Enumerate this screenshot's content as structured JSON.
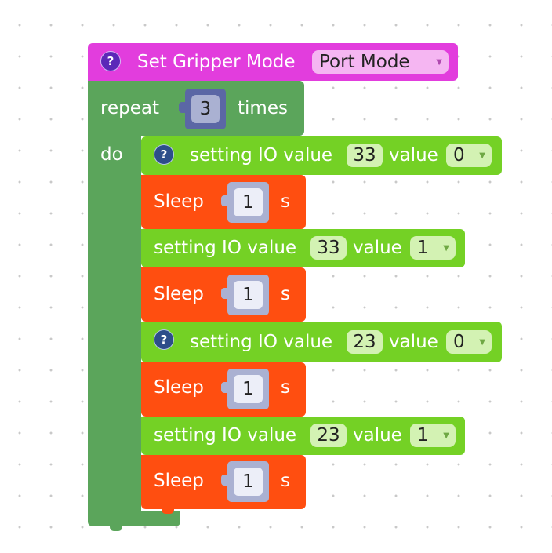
{
  "set_gripper": {
    "help_icon": "?",
    "label": "Set Gripper Mode",
    "mode_value": "Port Mode"
  },
  "repeat": {
    "label_repeat": "repeat",
    "count": "3",
    "label_times": "times",
    "label_do": "do"
  },
  "statements": [
    {
      "help_icon": "?",
      "label": "setting IO value",
      "io": "33",
      "value_label": "value",
      "value": "0"
    },
    {
      "label": "Sleep",
      "seconds": "1",
      "unit": "s"
    },
    {
      "label": "setting IO value",
      "io": "33",
      "value_label": "value",
      "value": "1"
    },
    {
      "label": "Sleep",
      "seconds": "1",
      "unit": "s"
    },
    {
      "help_icon": "?",
      "label": "setting IO value",
      "io": "23",
      "value_label": "value",
      "value": "0"
    },
    {
      "label": "Sleep",
      "seconds": "1",
      "unit": "s"
    },
    {
      "label": "setting IO value",
      "io": "23",
      "value_label": "value",
      "value": "1"
    },
    {
      "label": "Sleep",
      "seconds": "1",
      "unit": "s"
    }
  ],
  "dropdown_arrow": "▼",
  "colors": {
    "set_gripper_block": "#e23ddd",
    "repeat_block": "#5ba55b",
    "io_block": "#74d125",
    "sleep_block": "#ff4e10",
    "number_socket": "#5b67a5",
    "sleep_socket": "#aab1d2"
  }
}
